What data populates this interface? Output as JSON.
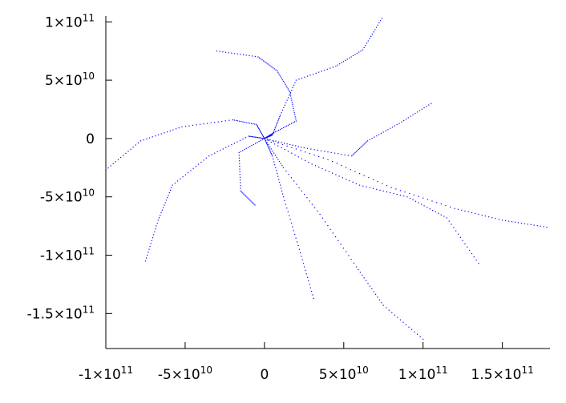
{
  "chart_data": {
    "type": "scatter",
    "title": "",
    "xlabel": "",
    "ylabel": "",
    "xlim": [
      -100000000000,
      180000000000
    ],
    "ylim": [
      -180000000000,
      105000000000
    ],
    "grid": false,
    "legend": "none",
    "point_color": "#0000ff",
    "xticks": [
      {
        "value": -100000000000,
        "mantissa": "-1",
        "exponent": "11"
      },
      {
        "value": -50000000000,
        "mantissa": "-5",
        "exponent": "10"
      },
      {
        "value": 0,
        "mantissa": "0",
        "exponent": ""
      },
      {
        "value": 50000000000,
        "mantissa": "5",
        "exponent": "10"
      },
      {
        "value": 100000000000,
        "mantissa": "1",
        "exponent": "11"
      },
      {
        "value": 150000000000,
        "mantissa": "1.5",
        "exponent": "11"
      }
    ],
    "yticks": [
      {
        "value": 100000000000,
        "mantissa": "1",
        "exponent": "11"
      },
      {
        "value": 50000000000,
        "mantissa": "5",
        "exponent": "10"
      },
      {
        "value": 0,
        "mantissa": "0",
        "exponent": ""
      },
      {
        "value": -50000000000,
        "mantissa": "-5",
        "exponent": "10"
      },
      {
        "value": -100000000000,
        "mantissa": "-1",
        "exponent": "11"
      },
      {
        "value": -150000000000,
        "mantissa": "-1.5",
        "exponent": "11"
      }
    ],
    "series": [
      {
        "points_per_segment": 14,
        "path": [
          [
            0,
            0
          ],
          [
            5000000000,
            3000000000
          ],
          [
            10000000000,
            20000000000
          ],
          [
            20000000000,
            50000000000
          ],
          [
            45000000000,
            62000000000
          ],
          [
            62000000000,
            76000000000
          ],
          [
            74000000000,
            103000000000
          ]
        ]
      },
      {
        "points_per_segment": 14,
        "path": [
          [
            0,
            0
          ],
          [
            6000000000,
            5000000000
          ],
          [
            20000000000,
            15000000000
          ],
          [
            16000000000,
            40000000000
          ],
          [
            8000000000,
            58000000000
          ],
          [
            -4000000000,
            70000000000
          ],
          [
            -30000000000,
            75000000000
          ]
        ]
      },
      {
        "points_per_segment": 14,
        "path": [
          [
            0,
            0
          ],
          [
            -5000000000,
            12000000000
          ],
          [
            -20000000000,
            16000000000
          ],
          [
            -52000000000,
            10000000000
          ],
          [
            -78000000000,
            -2000000000
          ],
          [
            -100000000000,
            -27000000000
          ]
        ]
      },
      {
        "points_per_segment": 14,
        "path": [
          [
            0,
            0
          ],
          [
            -10000000000,
            2000000000
          ],
          [
            -35000000000,
            -15000000000
          ],
          [
            -58000000000,
            -40000000000
          ],
          [
            -67000000000,
            -70000000000
          ],
          [
            -75000000000,
            -105000000000
          ]
        ]
      },
      {
        "points_per_segment": 14,
        "path": [
          [
            0,
            0
          ],
          [
            -16000000000,
            -12000000000
          ],
          [
            -15000000000,
            -45000000000
          ],
          [
            -6000000000,
            -57000000000
          ]
        ]
      },
      {
        "points_per_segment": 14,
        "path": [
          [
            0,
            0
          ],
          [
            5000000000,
            -15000000000
          ],
          [
            12000000000,
            -50000000000
          ],
          [
            22000000000,
            -95000000000
          ],
          [
            31000000000,
            -137000000000
          ]
        ]
      },
      {
        "points_per_segment": 14,
        "path": [
          [
            0,
            0
          ],
          [
            12000000000,
            -25000000000
          ],
          [
            35000000000,
            -65000000000
          ],
          [
            58000000000,
            -110000000000
          ],
          [
            75000000000,
            -143000000000
          ],
          [
            100000000000,
            -172000000000
          ]
        ]
      },
      {
        "points_per_segment": 14,
        "path": [
          [
            0,
            0
          ],
          [
            30000000000,
            -22000000000
          ],
          [
            60000000000,
            -40000000000
          ],
          [
            90000000000,
            -50000000000
          ],
          [
            115000000000,
            -68000000000
          ],
          [
            135000000000,
            -107000000000
          ]
        ]
      },
      {
        "points_per_segment": 14,
        "path": [
          [
            0,
            0
          ],
          [
            40000000000,
            -18000000000
          ],
          [
            80000000000,
            -42000000000
          ],
          [
            120000000000,
            -60000000000
          ],
          [
            150000000000,
            -70000000000
          ],
          [
            178000000000,
            -76000000000
          ]
        ]
      },
      {
        "points_per_segment": 14,
        "path": [
          [
            0,
            0
          ],
          [
            25000000000,
            -8000000000
          ],
          [
            55000000000,
            -15000000000
          ],
          [
            65000000000,
            -2000000000
          ],
          [
            85000000000,
            13000000000
          ],
          [
            105000000000,
            30000000000
          ]
        ]
      }
    ]
  }
}
